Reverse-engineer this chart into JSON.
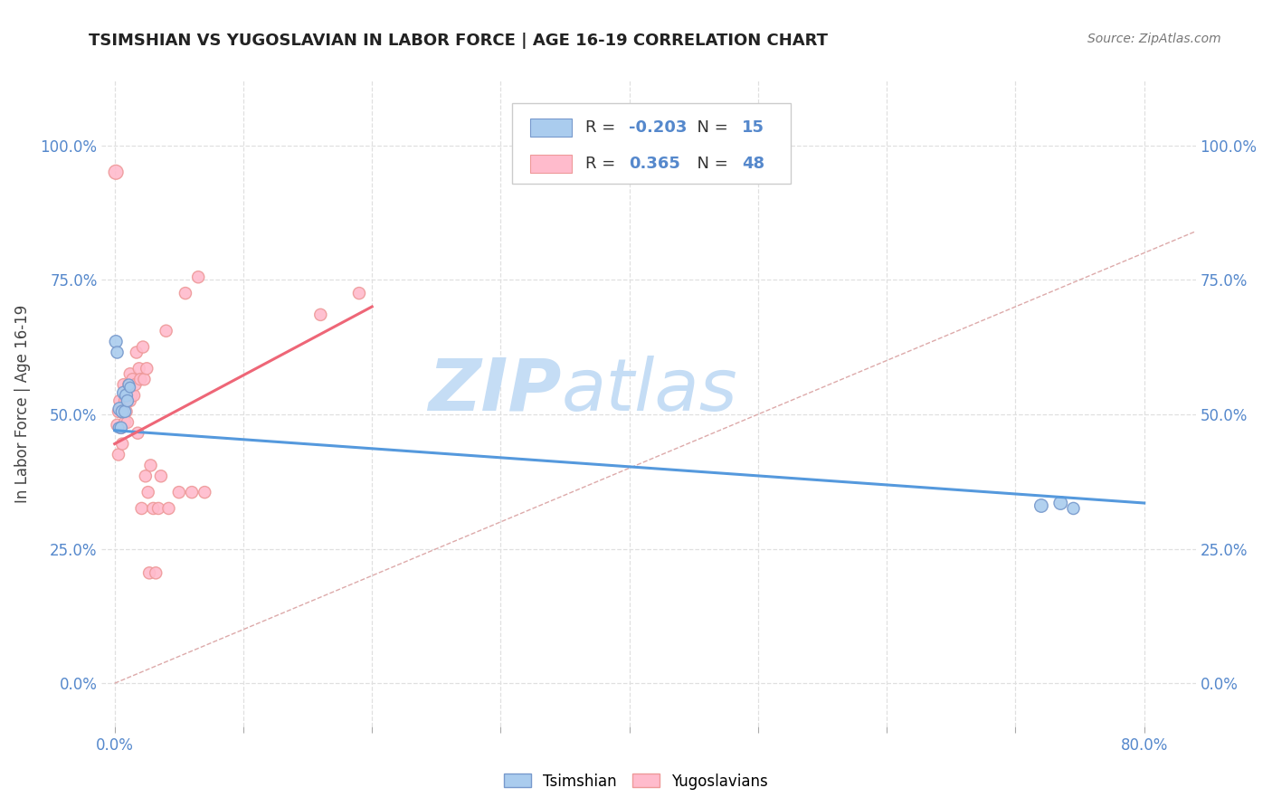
{
  "title": "TSIMSHIAN VS YUGOSLAVIAN IN LABOR FORCE | AGE 16-19 CORRELATION CHART",
  "source_text": "Source: ZipAtlas.com",
  "ylabel": "In Labor Force | Age 16-19",
  "xlim": [
    -0.01,
    0.84
  ],
  "ylim": [
    -0.08,
    1.12
  ],
  "x_tick_positions": [
    0.0,
    0.1,
    0.2,
    0.3,
    0.4,
    0.5,
    0.6,
    0.7,
    0.8
  ],
  "y_tick_positions": [
    0.0,
    0.25,
    0.5,
    0.75,
    1.0
  ],
  "x_label_only_ends": true,
  "tsimshian_color": "#aaccee",
  "tsimshian_edge_color": "#7799cc",
  "yugoslavian_color": "#ffbbcc",
  "yugoslavian_edge_color": "#ee9999",
  "tsimshian_R": -0.203,
  "tsimshian_N": 15,
  "yugoslavian_R": 0.365,
  "yugoslavian_N": 48,
  "tsimshian_line_color": "#5599dd",
  "yugoslavian_line_color": "#ee6677",
  "diagonal_color": "#ddaaaa",
  "watermark_zip_color": "#c5ddf5",
  "watermark_atlas_color": "#c5ddf5",
  "legend_labels": [
    "Tsimshian",
    "Yugoslavians"
  ],
  "tsimshian_x": [
    0.001,
    0.002,
    0.003,
    0.004,
    0.005,
    0.006,
    0.007,
    0.008,
    0.009,
    0.01,
    0.011,
    0.012,
    0.72,
    0.735,
    0.745
  ],
  "tsimshian_y": [
    0.635,
    0.615,
    0.475,
    0.51,
    0.475,
    0.505,
    0.54,
    0.505,
    0.535,
    0.525,
    0.555,
    0.55,
    0.33,
    0.335,
    0.325
  ],
  "tsimshian_sizes": [
    100,
    90,
    70,
    110,
    90,
    100,
    100,
    90,
    100,
    90,
    80,
    70,
    110,
    110,
    90
  ],
  "yugoslavian_x": [
    0.001,
    0.002,
    0.003,
    0.003,
    0.004,
    0.005,
    0.005,
    0.006,
    0.006,
    0.007,
    0.007,
    0.008,
    0.008,
    0.009,
    0.01,
    0.01,
    0.011,
    0.012,
    0.012,
    0.013,
    0.014,
    0.015,
    0.016,
    0.017,
    0.018,
    0.019,
    0.02,
    0.021,
    0.022,
    0.023,
    0.024,
    0.025,
    0.026,
    0.027,
    0.028,
    0.03,
    0.032,
    0.034,
    0.036,
    0.04,
    0.042,
    0.05,
    0.055,
    0.06,
    0.065,
    0.07,
    0.16,
    0.19
  ],
  "yugoslavian_y": [
    0.95,
    0.48,
    0.505,
    0.425,
    0.525,
    0.475,
    0.475,
    0.505,
    0.445,
    0.555,
    0.505,
    0.525,
    0.485,
    0.505,
    0.525,
    0.485,
    0.555,
    0.575,
    0.525,
    0.535,
    0.565,
    0.535,
    0.555,
    0.615,
    0.465,
    0.585,
    0.565,
    0.325,
    0.625,
    0.565,
    0.385,
    0.585,
    0.355,
    0.205,
    0.405,
    0.325,
    0.205,
    0.325,
    0.385,
    0.655,
    0.325,
    0.355,
    0.725,
    0.355,
    0.755,
    0.355,
    0.685,
    0.725
  ],
  "yugoslavian_sizes": [
    130,
    90,
    90,
    90,
    90,
    90,
    90,
    90,
    90,
    90,
    90,
    90,
    90,
    90,
    90,
    90,
    90,
    90,
    90,
    90,
    90,
    90,
    90,
    90,
    90,
    90,
    90,
    90,
    90,
    90,
    90,
    90,
    90,
    90,
    90,
    90,
    90,
    90,
    90,
    90,
    90,
    90,
    90,
    90,
    90,
    90,
    90,
    90
  ],
  "tsimshian_line_x0": 0.0,
  "tsimshian_line_x1": 0.8,
  "tsimshian_line_y0": 0.47,
  "tsimshian_line_y1": 0.335,
  "yugoslavian_line_x0": 0.0,
  "yugoslavian_line_x1": 0.2,
  "yugoslavian_line_y0": 0.445,
  "yugoslavian_line_y1": 0.7
}
